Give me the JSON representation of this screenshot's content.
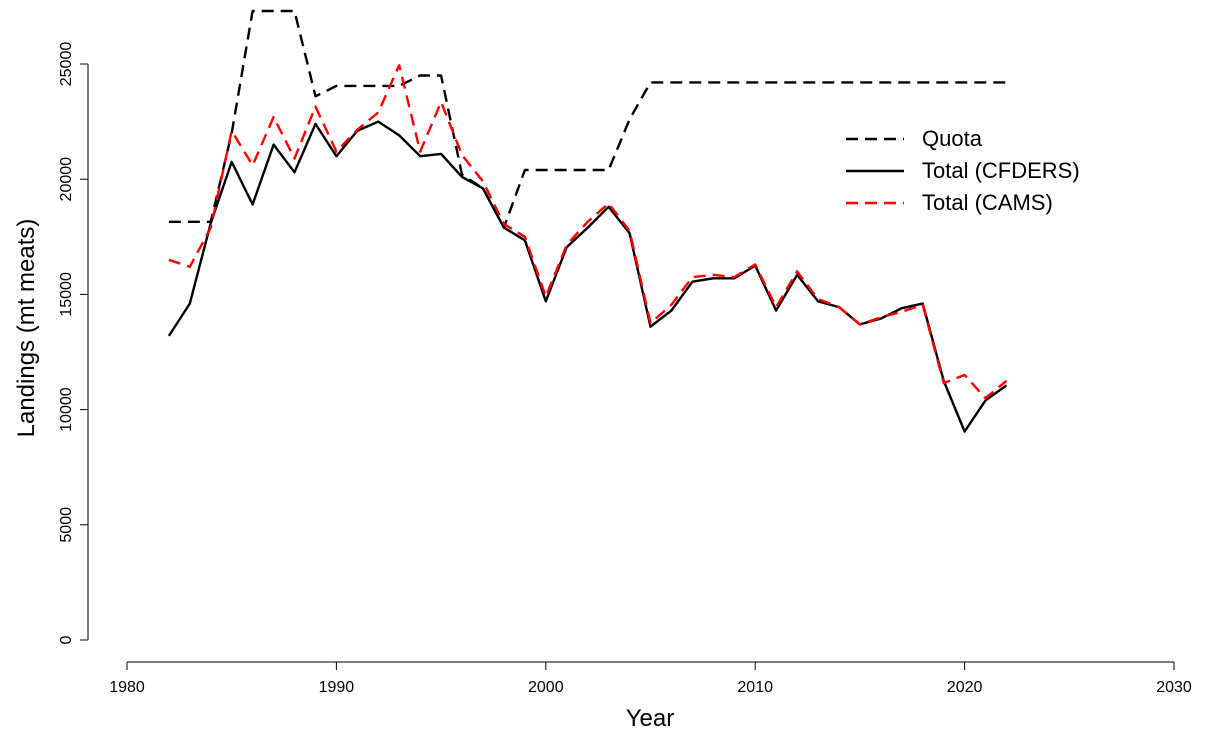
{
  "chart_data": {
    "type": "line",
    "title": "",
    "xlabel": "Year",
    "ylabel": "Landings (mt meats)",
    "xlim": [
      1980,
      2030
    ],
    "ylim": [
      0,
      25000
    ],
    "xticks": [
      1980,
      1990,
      2000,
      2010,
      2020,
      2030
    ],
    "yticks": [
      0,
      5000,
      10000,
      15000,
      20000,
      25000
    ],
    "grid": false,
    "legend_position": "top-right",
    "series": [
      {
        "name": "Quota",
        "color": "#000000",
        "style": "dashed",
        "x": [
          1982,
          1983,
          1984,
          1985,
          1986,
          1987,
          1988,
          1989,
          1990,
          1991,
          1992,
          1993,
          1994,
          1995,
          1996,
          1997,
          1998,
          1999,
          2000,
          2001,
          2002,
          2003,
          2004,
          2005,
          2006,
          2007,
          2008,
          2009,
          2010,
          2011,
          2012,
          2013,
          2014,
          2015,
          2016,
          2017,
          2018,
          2019,
          2020,
          2021,
          2022
        ],
        "y": [
          18150,
          18150,
          18150,
          22000,
          27300,
          27300,
          27300,
          23600,
          24050,
          24050,
          24050,
          24050,
          24500,
          24500,
          20200,
          19600,
          17900,
          20400,
          20400,
          20400,
          20400,
          20400,
          22600,
          24200,
          24200,
          24200,
          24200,
          24200,
          24200,
          24200,
          24200,
          24200,
          24200,
          24200,
          24200,
          24200,
          24200,
          24200,
          24200,
          24200,
          24200
        ]
      },
      {
        "name": "Total (CFDERS)",
        "color": "#000000",
        "style": "solid",
        "x": [
          1982,
          1983,
          1984,
          1985,
          1986,
          1987,
          1988,
          1989,
          1990,
          1991,
          1992,
          1993,
          1994,
          1995,
          1996,
          1997,
          1998,
          1999,
          2000,
          2001,
          2002,
          2003,
          2004,
          2005,
          2006,
          2007,
          2008,
          2009,
          2010,
          2011,
          2012,
          2013,
          2014,
          2015,
          2016,
          2017,
          2018,
          2019,
          2020,
          2021,
          2022
        ],
        "y": [
          13200,
          14600,
          18100,
          20750,
          18900,
          21500,
          20300,
          22400,
          21000,
          22100,
          22500,
          21900,
          21000,
          21100,
          20100,
          19600,
          17900,
          17350,
          14700,
          17050,
          17900,
          18800,
          17650,
          13600,
          14300,
          15550,
          15700,
          15700,
          16250,
          14300,
          15850,
          14700,
          14450,
          13700,
          13950,
          14400,
          14600,
          11250,
          9050,
          10400,
          11050
        ]
      },
      {
        "name": "Total (CAMS)",
        "color": "#ff0000",
        "style": "dashed",
        "x": [
          1982,
          1983,
          1984,
          1985,
          1986,
          1987,
          1988,
          1989,
          1990,
          1991,
          1992,
          1993,
          1994,
          1995,
          1996,
          1997,
          1998,
          1999,
          2000,
          2001,
          2002,
          2003,
          2004,
          2005,
          2006,
          2007,
          2008,
          2009,
          2010,
          2011,
          2012,
          2013,
          2014,
          2015,
          2016,
          2017,
          2018,
          2019,
          2020,
          2021,
          2022
        ],
        "y": [
          16500,
          16200,
          17900,
          22100,
          20600,
          22700,
          20900,
          23150,
          21200,
          22150,
          22900,
          24950,
          21200,
          23350,
          21050,
          19900,
          18050,
          17500,
          14900,
          17150,
          18150,
          18950,
          17750,
          13750,
          14550,
          15750,
          15850,
          15750,
          16300,
          14450,
          16000,
          14800,
          14450,
          13700,
          14000,
          14250,
          14550,
          11150,
          11500,
          10500,
          11250
        ]
      }
    ]
  }
}
